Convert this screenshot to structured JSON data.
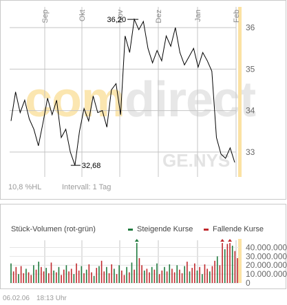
{
  "price_panel": {
    "months": [
      "Sep",
      "Okt",
      "Nov",
      "Dez",
      "Jan",
      "Feb"
    ],
    "y_ticks": [
      "36",
      "35",
      "34",
      "33"
    ],
    "high_label": "36,20",
    "low_label": "32,68",
    "watermark_left": "com",
    "watermark_right": "direct",
    "symbol_watermark": "GE.NYS",
    "range_info": "10,8 %HL",
    "interval": "Intervall: 1 Tag"
  },
  "volume_panel": {
    "title": "Stück-Volumen (rot-grün)",
    "legend_up": "Steigende Kurse",
    "legend_down": "Fallende Kurse",
    "y_ticks": [
      "40.000.000",
      "30.000.000",
      "20.000.000",
      "10.000.000",
      "0"
    ]
  },
  "footer": {
    "date": "06.02.06",
    "time": "18:13 Uhr"
  },
  "colors": {
    "up": "#1f7a3e",
    "down": "#c0282c",
    "grid": "#c4c4c4",
    "price_line": "#000000",
    "highlight": "#fbe2a3"
  },
  "chart_data": [
    {
      "type": "line",
      "title": "",
      "x_labels": [
        "Sep",
        "Okt",
        "Nov",
        "Dez",
        "Jan",
        "Feb"
      ],
      "y": [
        33.75,
        34.45,
        33.95,
        34.25,
        33.8,
        33.55,
        33.15,
        33.7,
        34.3,
        33.9,
        34.25,
        33.35,
        33.55,
        33.0,
        32.68,
        33.5,
        34.05,
        33.75,
        34.35,
        33.95,
        34.0,
        33.6,
        34.5,
        34.65,
        33.9,
        35.8,
        35.4,
        36.2,
        35.95,
        36.15,
        35.5,
        35.15,
        35.45,
        35.2,
        35.8,
        35.55,
        36.0,
        35.4,
        35.1,
        35.3,
        35.5,
        35.05,
        35.4,
        35.2,
        34.95,
        33.35,
        32.95,
        32.85,
        33.1,
        32.75
      ],
      "ylim": [
        32.4,
        36.5
      ],
      "annotations": [
        {
          "label": "36,20",
          "value": 36.2
        },
        {
          "label": "32,68",
          "value": 32.68
        }
      ],
      "grid": true
    },
    {
      "type": "bar",
      "title": "Stück-Volumen (rot-grün)",
      "series": [
        {
          "name": "Steigende Kurse",
          "color": "#1f7a3e"
        },
        {
          "name": "Fallende Kurse",
          "color": "#c0282c"
        }
      ],
      "values": [
        22,
        13,
        18,
        10,
        19,
        11,
        16,
        12,
        9,
        20,
        15,
        24,
        18,
        13,
        17,
        11,
        23,
        14,
        12,
        18,
        9,
        15,
        20,
        13,
        16,
        10,
        22,
        14,
        19,
        11,
        15,
        21,
        12,
        8,
        17,
        19,
        25,
        13,
        18,
        11,
        21,
        16,
        10,
        20,
        14,
        9,
        18,
        12,
        23,
        15,
        45,
        28,
        20,
        14,
        16,
        12,
        18,
        15,
        22,
        10,
        14,
        18,
        13,
        21,
        16,
        12,
        20,
        15,
        11,
        19,
        24,
        13,
        17,
        22,
        14,
        18,
        10,
        21,
        16,
        13,
        19,
        25,
        30,
        20,
        46,
        38,
        44,
        47,
        42,
        36,
        28
      ],
      "directions": [
        "u",
        "d",
        "d",
        "u",
        "d",
        "d",
        "u",
        "d",
        "d",
        "u",
        "d",
        "u",
        "d",
        "d",
        "u",
        "d",
        "d",
        "u",
        "d",
        "u",
        "d",
        "d",
        "u",
        "d",
        "d",
        "u",
        "d",
        "d",
        "u",
        "d",
        "u",
        "d",
        "d",
        "u",
        "d",
        "u",
        "d",
        "d",
        "u",
        "d",
        "d",
        "u",
        "d",
        "u",
        "d",
        "d",
        "u",
        "d",
        "u",
        "d",
        "u",
        "d",
        "d",
        "u",
        "d",
        "d",
        "u",
        "d",
        "u",
        "d",
        "d",
        "u",
        "d",
        "u",
        "d",
        "d",
        "u",
        "d",
        "d",
        "u",
        "d",
        "u",
        "d",
        "d",
        "u",
        "d",
        "u",
        "d",
        "d",
        "u",
        "d",
        "d",
        "u",
        "d",
        "d",
        "u",
        "d",
        "d",
        "u",
        "d",
        "d"
      ],
      "units": "millions of shares",
      "ylim": [
        0,
        45
      ]
    }
  ]
}
